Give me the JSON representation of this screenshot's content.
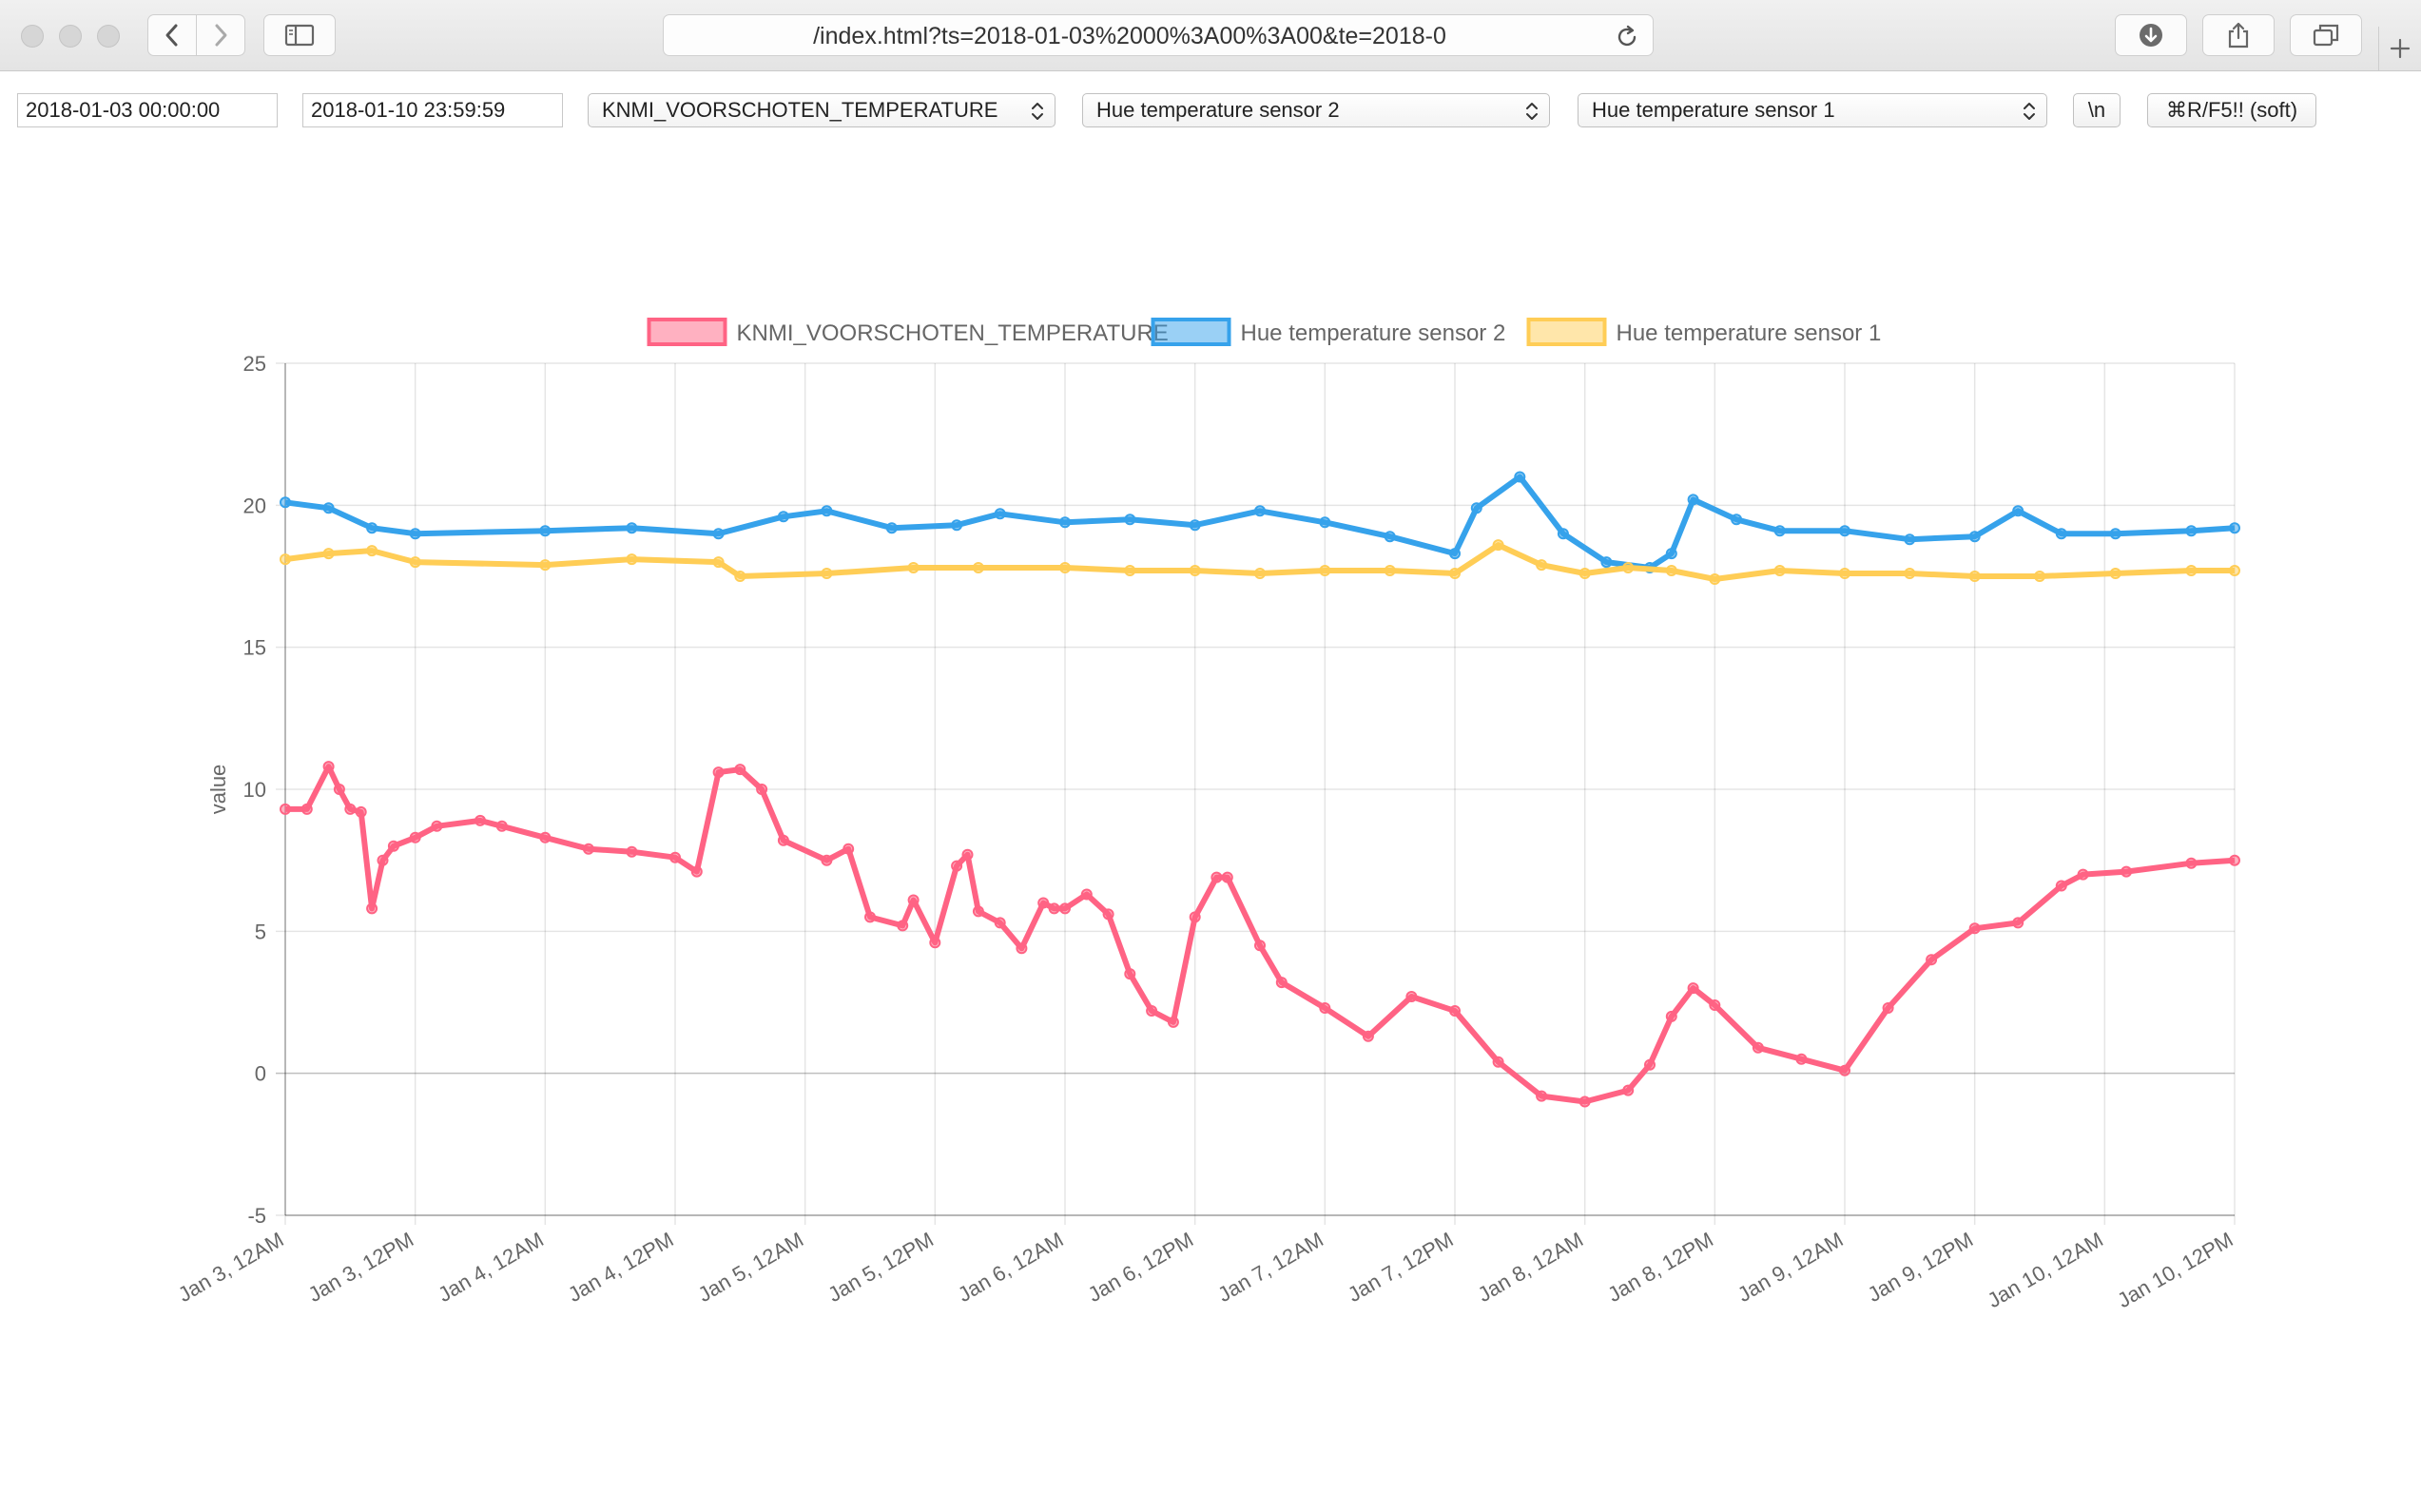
{
  "browser": {
    "url": "/index.html?ts=2018-01-03%2000%3A00%3A00&te=2018-0"
  },
  "controls": {
    "start_time": "2018-01-03 00:00:00",
    "end_time": "2018-01-10 23:59:59",
    "series_select_1": "KNMI_VOORSCHOTEN_TEMPERATURE",
    "series_select_2": "Hue temperature sensor 2",
    "series_select_3": "Hue temperature sensor 1",
    "newline_button": "\\n",
    "refresh_button": "⌘R/F5!! (soft)"
  },
  "colors": {
    "knmi": "#ff6384",
    "hue2": "#36a2eb",
    "hue1": "#ffcd56"
  },
  "chart_data": {
    "type": "line",
    "title": "",
    "xlabel": "",
    "ylabel": "value",
    "ylim": [
      -5,
      25
    ],
    "yticks": [
      -5,
      0,
      5,
      10,
      15,
      20,
      25
    ],
    "xlim": [
      "2018-01-03 00:00",
      "2018-01-10 12:00"
    ],
    "xticks": [
      "Jan 3, 12AM",
      "Jan 3, 12PM",
      "Jan 4, 12AM",
      "Jan 4, 12PM",
      "Jan 5, 12AM",
      "Jan 5, 12PM",
      "Jan 6, 12AM",
      "Jan 6, 12PM",
      "Jan 7, 12AM",
      "Jan 7, 12PM",
      "Jan 8, 12AM",
      "Jan 8, 12PM",
      "Jan 9, 12AM",
      "Jan 9, 12PM",
      "Jan 10, 12AM",
      "Jan 10, 12PM"
    ],
    "grid": true,
    "legend_position": "top",
    "series": [
      {
        "name": "KNMI_VOORSCHOTEN_TEMPERATURE",
        "x": [
          "2018-01-03 00:00",
          "2018-01-03 02:00",
          "2018-01-03 04:00",
          "2018-01-03 05:00",
          "2018-01-03 06:00",
          "2018-01-03 07:00",
          "2018-01-03 08:00",
          "2018-01-03 09:00",
          "2018-01-03 10:00",
          "2018-01-03 12:00",
          "2018-01-03 14:00",
          "2018-01-03 18:00",
          "2018-01-03 20:00",
          "2018-01-04 00:00",
          "2018-01-04 04:00",
          "2018-01-04 08:00",
          "2018-01-04 12:00",
          "2018-01-04 14:00",
          "2018-01-04 16:00",
          "2018-01-04 18:00",
          "2018-01-04 20:00",
          "2018-01-04 22:00",
          "2018-01-05 02:00",
          "2018-01-05 04:00",
          "2018-01-05 06:00",
          "2018-01-05 09:00",
          "2018-01-05 10:00",
          "2018-01-05 12:00",
          "2018-01-05 14:00",
          "2018-01-05 15:00",
          "2018-01-05 16:00",
          "2018-01-05 18:00",
          "2018-01-05 20:00",
          "2018-01-05 22:00",
          "2018-01-05 23:00",
          "2018-01-06 00:00",
          "2018-01-06 02:00",
          "2018-01-06 04:00",
          "2018-01-06 06:00",
          "2018-01-06 08:00",
          "2018-01-06 10:00",
          "2018-01-06 12:00",
          "2018-01-06 14:00",
          "2018-01-06 15:00",
          "2018-01-06 18:00",
          "2018-01-06 20:00",
          "2018-01-07 00:00",
          "2018-01-07 04:00",
          "2018-01-07 08:00",
          "2018-01-07 12:00",
          "2018-01-07 16:00",
          "2018-01-07 20:00",
          "2018-01-08 00:00",
          "2018-01-08 04:00",
          "2018-01-08 06:00",
          "2018-01-08 08:00",
          "2018-01-08 10:00",
          "2018-01-08 12:00",
          "2018-01-08 16:00",
          "2018-01-08 20:00",
          "2018-01-09 00:00",
          "2018-01-09 04:00",
          "2018-01-09 08:00",
          "2018-01-09 12:00",
          "2018-01-09 16:00",
          "2018-01-09 20:00",
          "2018-01-09 22:00",
          "2018-01-10 02:00",
          "2018-01-10 08:00",
          "2018-01-10 12:00"
        ],
        "values": [
          9.3,
          9.3,
          10.8,
          10.0,
          9.3,
          9.2,
          5.8,
          7.5,
          8.0,
          8.3,
          8.7,
          8.9,
          8.7,
          8.3,
          7.9,
          7.8,
          7.6,
          7.1,
          10.6,
          10.7,
          10.0,
          8.2,
          7.5,
          7.9,
          5.5,
          5.2,
          6.1,
          4.6,
          7.3,
          7.7,
          5.7,
          5.3,
          4.4,
          6.0,
          5.8,
          5.8,
          6.3,
          5.6,
          3.5,
          2.2,
          1.8,
          5.5,
          6.9,
          6.9,
          4.5,
          3.2,
          2.3,
          1.3,
          2.7,
          2.2,
          0.4,
          -0.8,
          -1.0,
          -0.6,
          0.3,
          2.0,
          3.0,
          2.4,
          0.9,
          0.5,
          0.1,
          2.3,
          4.0,
          5.1,
          5.3,
          6.6,
          7.0,
          7.1,
          7.4,
          7.5
        ]
      },
      {
        "name": "Hue temperature sensor 2",
        "x": [
          "2018-01-03 00:00",
          "2018-01-03 04:00",
          "2018-01-03 08:00",
          "2018-01-03 12:00",
          "2018-01-04 00:00",
          "2018-01-04 08:00",
          "2018-01-04 16:00",
          "2018-01-04 22:00",
          "2018-01-05 02:00",
          "2018-01-05 08:00",
          "2018-01-05 14:00",
          "2018-01-05 18:00",
          "2018-01-06 00:00",
          "2018-01-06 06:00",
          "2018-01-06 12:00",
          "2018-01-06 18:00",
          "2018-01-07 00:00",
          "2018-01-07 06:00",
          "2018-01-07 12:00",
          "2018-01-07 14:00",
          "2018-01-07 18:00",
          "2018-01-07 22:00",
          "2018-01-08 02:00",
          "2018-01-08 06:00",
          "2018-01-08 08:00",
          "2018-01-08 10:00",
          "2018-01-08 14:00",
          "2018-01-08 18:00",
          "2018-01-09 00:00",
          "2018-01-09 06:00",
          "2018-01-09 12:00",
          "2018-01-09 16:00",
          "2018-01-09 20:00",
          "2018-01-10 01:00",
          "2018-01-10 08:00",
          "2018-01-10 12:00"
        ],
        "values": [
          20.1,
          19.9,
          19.2,
          19.0,
          19.1,
          19.2,
          19.0,
          19.6,
          19.8,
          19.2,
          19.3,
          19.7,
          19.4,
          19.5,
          19.3,
          19.8,
          19.4,
          18.9,
          18.3,
          19.9,
          21.0,
          19.0,
          18.0,
          17.8,
          18.3,
          20.2,
          19.5,
          19.1,
          19.1,
          18.8,
          18.9,
          19.8,
          19.0,
          19.0,
          19.1,
          19.2
        ]
      },
      {
        "name": "Hue temperature sensor 1",
        "x": [
          "2018-01-03 00:00",
          "2018-01-03 04:00",
          "2018-01-03 08:00",
          "2018-01-03 12:00",
          "2018-01-04 00:00",
          "2018-01-04 08:00",
          "2018-01-04 16:00",
          "2018-01-04 18:00",
          "2018-01-05 02:00",
          "2018-01-05 10:00",
          "2018-01-05 16:00",
          "2018-01-06 00:00",
          "2018-01-06 06:00",
          "2018-01-06 12:00",
          "2018-01-06 18:00",
          "2018-01-07 00:00",
          "2018-01-07 06:00",
          "2018-01-07 12:00",
          "2018-01-07 16:00",
          "2018-01-07 20:00",
          "2018-01-08 00:00",
          "2018-01-08 04:00",
          "2018-01-08 08:00",
          "2018-01-08 12:00",
          "2018-01-08 18:00",
          "2018-01-09 00:00",
          "2018-01-09 06:00",
          "2018-01-09 12:00",
          "2018-01-09 18:00",
          "2018-01-10 01:00",
          "2018-01-10 08:00",
          "2018-01-10 12:00"
        ],
        "values": [
          18.1,
          18.3,
          18.4,
          18.0,
          17.9,
          18.1,
          18.0,
          17.5,
          17.6,
          17.8,
          17.8,
          17.8,
          17.7,
          17.7,
          17.6,
          17.7,
          17.7,
          17.6,
          18.6,
          17.9,
          17.6,
          17.8,
          17.7,
          17.4,
          17.7,
          17.6,
          17.6,
          17.5,
          17.5,
          17.6,
          17.7,
          17.7
        ]
      }
    ]
  }
}
